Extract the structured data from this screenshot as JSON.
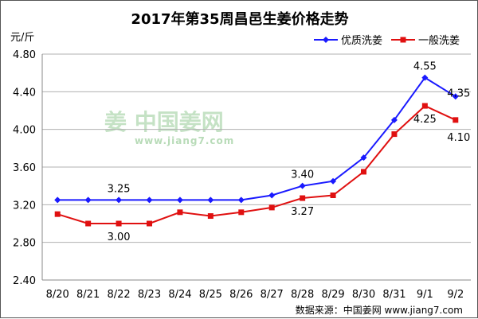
{
  "chart_data": {
    "type": "line",
    "title": "2017年第35周昌邑生姜价格走势",
    "ylabel": "元/斤",
    "ylim": [
      2.4,
      4.8
    ],
    "yticks": [
      "2.40",
      "2.80",
      "3.20",
      "3.60",
      "4.00",
      "4.40",
      "4.80"
    ],
    "categories": [
      "8/20",
      "8/21",
      "8/22",
      "8/23",
      "8/24",
      "8/25",
      "8/26",
      "8/27",
      "8/28",
      "8/29",
      "8/30",
      "8/31",
      "9/1",
      "9/2"
    ],
    "series": [
      {
        "name": "优质洗姜",
        "color": "#1a1aff",
        "marker": "diamond",
        "values": [
          3.25,
          3.25,
          3.25,
          3.25,
          3.25,
          3.25,
          3.25,
          3.3,
          3.4,
          3.45,
          3.7,
          4.1,
          4.55,
          4.35
        ]
      },
      {
        "name": "一般洗姜",
        "color": "#e01010",
        "marker": "square",
        "values": [
          3.1,
          3.0,
          3.0,
          3.0,
          3.12,
          3.08,
          3.12,
          3.17,
          3.27,
          3.3,
          3.55,
          3.95,
          4.25,
          4.1
        ]
      }
    ],
    "data_labels": [
      {
        "series": 0,
        "index": 2,
        "text": "3.25",
        "pos": "above"
      },
      {
        "series": 1,
        "index": 2,
        "text": "3.00",
        "pos": "below"
      },
      {
        "series": 0,
        "index": 8,
        "text": "3.40",
        "pos": "above"
      },
      {
        "series": 1,
        "index": 8,
        "text": "3.27",
        "pos": "below"
      },
      {
        "series": 0,
        "index": 12,
        "text": "4.55",
        "pos": "above"
      },
      {
        "series": 0,
        "index": 13,
        "text": "4.35",
        "pos": "above-right"
      },
      {
        "series": 1,
        "index": 12,
        "text": "4.25",
        "pos": "below"
      },
      {
        "series": 1,
        "index": 13,
        "text": "4.10",
        "pos": "below-right"
      }
    ],
    "legend": "top-right",
    "grid": "horizontal"
  },
  "watermark": {
    "main": "姜 中国姜网",
    "sub": "www.jiang7.com"
  },
  "source": "数据来源：中国姜网 www.jiang7.com"
}
